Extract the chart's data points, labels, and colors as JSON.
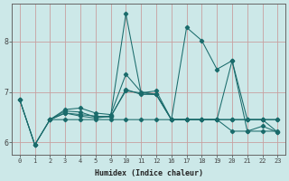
{
  "xlabel": "Humidex (Indice chaleur)",
  "bg_color": "#cce8e8",
  "line_color": "#1a6b6b",
  "grid_color": "#c8a0a0",
  "xtick_labels": [
    "0",
    "1",
    "2",
    "3",
    "4",
    "5",
    "9",
    "10",
    "11",
    "12",
    "16",
    "17",
    "18",
    "19",
    "20",
    "21",
    "22",
    "23"
  ],
  "yticks": [
    6,
    7,
    8
  ],
  "ylim": [
    5.75,
    8.75
  ],
  "series": [
    {
      "xi": [
        0,
        1,
        2,
        3,
        4,
        5,
        6,
        7,
        8,
        9,
        10,
        11,
        12,
        13,
        14,
        15,
        16,
        17
      ],
      "y": [
        6.85,
        5.95,
        6.45,
        6.58,
        6.52,
        6.48,
        6.52,
        8.55,
        6.98,
        6.95,
        6.45,
        8.28,
        8.02,
        7.45,
        7.62,
        6.22,
        6.32,
        6.2
      ]
    },
    {
      "xi": [
        0,
        1,
        2,
        3,
        4,
        5,
        6,
        7,
        8,
        9,
        10,
        11,
        12,
        13,
        14,
        15,
        16,
        17
      ],
      "y": [
        6.85,
        5.95,
        6.45,
        6.62,
        6.6,
        6.5,
        6.52,
        7.02,
        6.98,
        7.02,
        6.45,
        6.45,
        6.45,
        6.45,
        6.45,
        6.45,
        6.45,
        6.45
      ]
    },
    {
      "xi": [
        2,
        3,
        4,
        5,
        6,
        7,
        8,
        9,
        10,
        11,
        12,
        13,
        14,
        15,
        16,
        17
      ],
      "y": [
        6.45,
        6.65,
        6.68,
        6.58,
        6.55,
        7.35,
        7.0,
        6.95,
        6.45,
        6.45,
        6.45,
        6.45,
        6.45,
        6.45,
        6.45,
        6.45
      ]
    },
    {
      "xi": [
        2,
        3,
        4,
        5,
        6,
        7,
        8,
        9,
        10,
        11,
        12,
        13,
        14,
        15,
        16,
        17
      ],
      "y": [
        6.45,
        6.58,
        6.55,
        6.52,
        6.5,
        7.05,
        6.95,
        6.95,
        6.45,
        6.45,
        6.45,
        6.45,
        6.22,
        6.22,
        6.22,
        6.22
      ]
    },
    {
      "xi": [
        0,
        1,
        2,
        3,
        4,
        5,
        6,
        7,
        8,
        9,
        10,
        11,
        12,
        13,
        14,
        15,
        16,
        17
      ],
      "y": [
        6.85,
        5.95,
        6.45,
        6.45,
        6.45,
        6.45,
        6.45,
        6.45,
        6.45,
        6.45,
        6.45,
        6.45,
        6.45,
        6.45,
        7.62,
        6.45,
        6.45,
        6.2
      ]
    }
  ]
}
